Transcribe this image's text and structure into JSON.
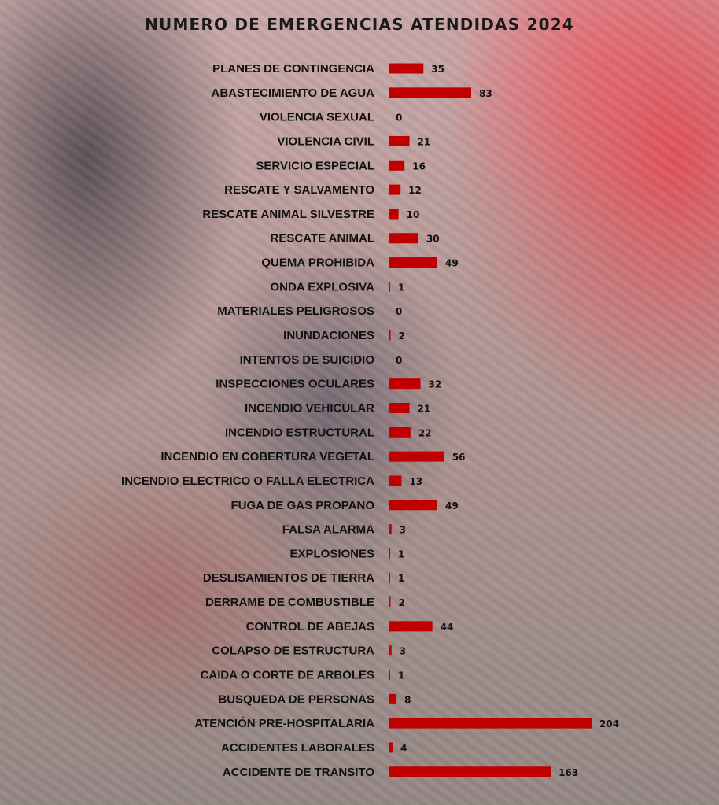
{
  "chart_data": {
    "type": "bar",
    "orientation": "horizontal",
    "title": "NUMERO DE EMERGENCIAS ATENDIDAS 2024",
    "categories": [
      "PLANES DE CONTINGENCIA",
      "ABASTECIMIENTO DE AGUA",
      "VIOLENCIA SEXUAL",
      "VIOLENCIA CIVIL",
      "SERVICIO ESPECIAL",
      "RESCATE Y SALVAMENTO",
      "RESCATE ANIMAL SILVESTRE",
      "RESCATE ANIMAL",
      "QUEMA PROHIBIDA",
      "ONDA EXPLOSIVA",
      "MATERIALES PELIGROSOS",
      "INUNDACIONES",
      "INTENTOS DE SUICIDIO",
      "INSPECCIONES OCULARES",
      "INCENDIO VEHICULAR",
      "INCENDIO ESTRUCTURAL",
      "INCENDIO EN COBERTURA VEGETAL",
      "INCENDIO  ELECTRICO O FALLA ELECTRICA",
      "FUGA DE GAS PROPANO",
      "FALSA ALARMA",
      "EXPLOSIONES",
      "DESLISAMIENTOS DE TIERRA",
      "DERRAME DE COMBUSTIBLE",
      "CONTROL DE ABEJAS",
      "COLAPSO DE ESTRUCTURA",
      "CAIDA O CORTE DE ARBOLES",
      "BUSQUEDA DE PERSONAS",
      "ATENCIÓN PRE-HOSPITALARIA",
      "ACCIDENTES LABORALES",
      "ACCIDENTE DE TRANSITO"
    ],
    "values": [
      35,
      83,
      0,
      21,
      16,
      12,
      10,
      30,
      49,
      1,
      0,
      2,
      0,
      32,
      21,
      22,
      56,
      13,
      49,
      3,
      1,
      1,
      2,
      44,
      3,
      1,
      8,
      204,
      4,
      163
    ],
    "data_labels": true,
    "xlim": [
      0,
      204
    ],
    "grid": false,
    "legend": "none",
    "bar_color": "#c00000",
    "xlabel": "",
    "ylabel": ""
  }
}
